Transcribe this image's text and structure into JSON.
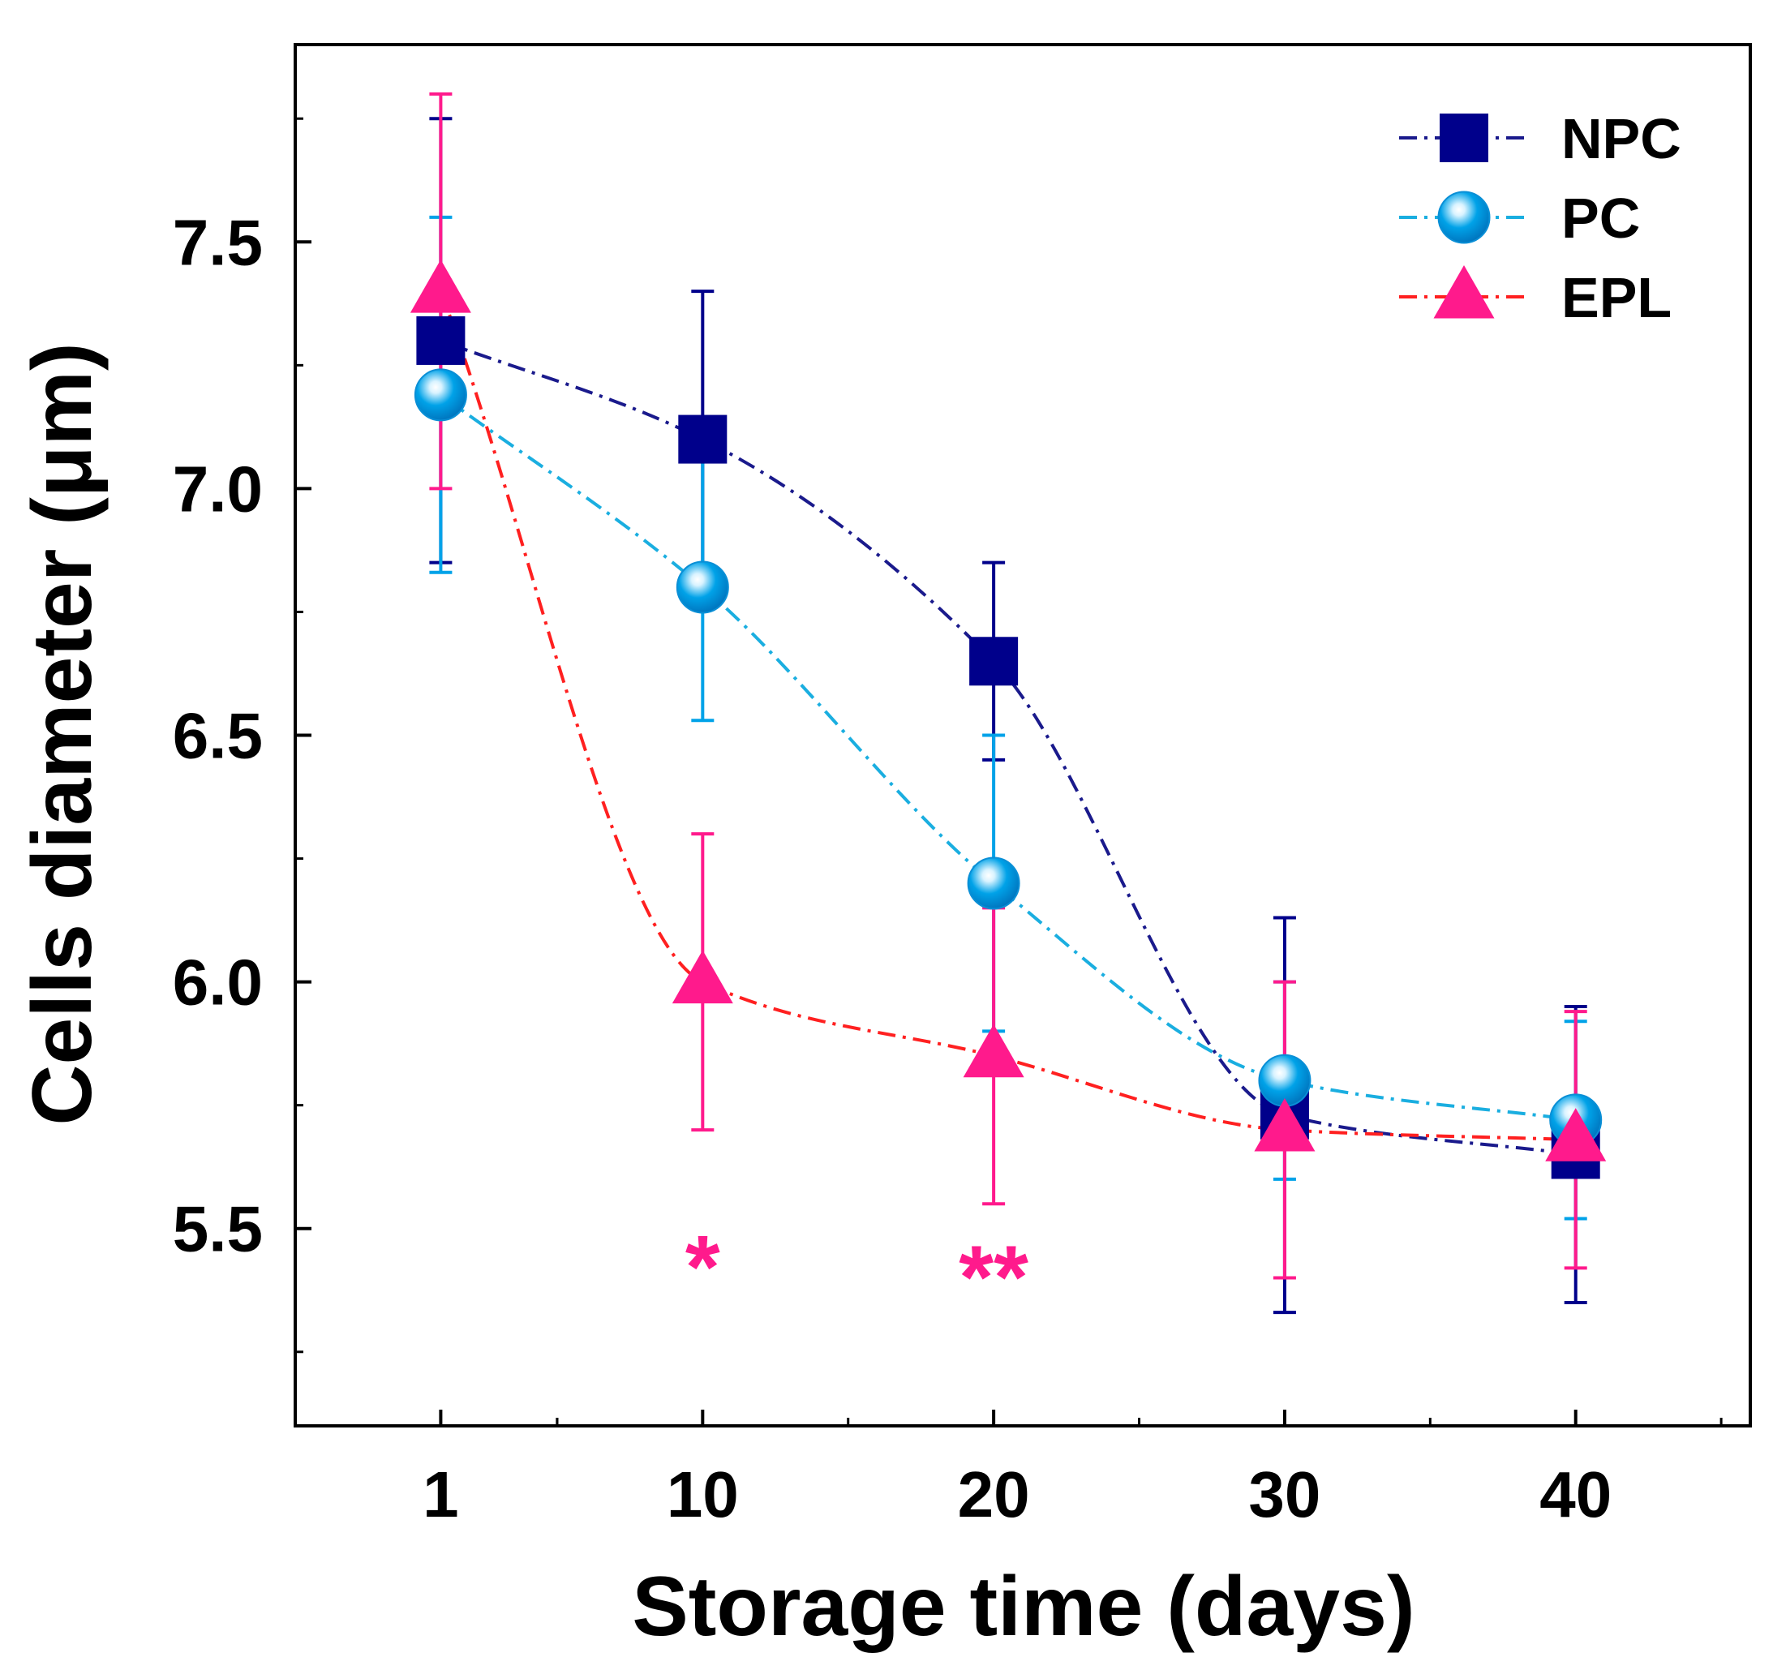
{
  "chart_data": {
    "type": "line",
    "xlabel": "Storage time (days)",
    "ylabel": "Cells diameter (μm)",
    "x_ticks": [
      "1",
      "10",
      "20",
      "30",
      "40"
    ],
    "y_ticks": [
      "5.5",
      "6.0",
      "6.5",
      "7.0",
      "7.5"
    ],
    "x_tick_values": [
      1,
      10,
      20,
      30,
      40
    ],
    "y_tick_values": [
      5.5,
      6.0,
      6.5,
      7.0,
      7.5
    ],
    "xlim": [
      -4,
      46
    ],
    "ylim": [
      5.1,
      7.9
    ],
    "grid": false,
    "legend_position": "top-right",
    "series": [
      {
        "name": "NPC",
        "marker": "square",
        "color": "#00008b",
        "line_color": "#1a1a8c",
        "x": [
          1,
          10,
          20,
          30,
          40
        ],
        "y": [
          7.3,
          7.1,
          6.65,
          5.73,
          5.65
        ],
        "err": [
          0.45,
          0.3,
          0.2,
          0.4,
          0.3
        ]
      },
      {
        "name": "PC",
        "marker": "circle",
        "color": "#00a2e8",
        "line_color": "#1aaee0",
        "x": [
          1,
          10,
          20,
          30,
          40
        ],
        "y": [
          7.19,
          6.8,
          6.2,
          5.8,
          5.72
        ],
        "err": [
          0.36,
          0.27,
          0.3,
          0.2,
          0.2
        ]
      },
      {
        "name": "EPL",
        "marker": "triangle",
        "color": "#ff1a8c",
        "line_color": "#ff2020",
        "x": [
          1,
          10,
          20,
          30,
          40
        ],
        "y": [
          7.4,
          6.0,
          5.85,
          5.7,
          5.68
        ],
        "err": [
          0.4,
          0.3,
          0.3,
          0.3,
          0.26
        ]
      }
    ],
    "annotations": [
      {
        "text": "*",
        "x": 10,
        "y": 5.45,
        "color": "#ff1a8c"
      },
      {
        "text": "**",
        "x": 20,
        "y": 5.43,
        "color": "#ff1a8c"
      }
    ]
  }
}
